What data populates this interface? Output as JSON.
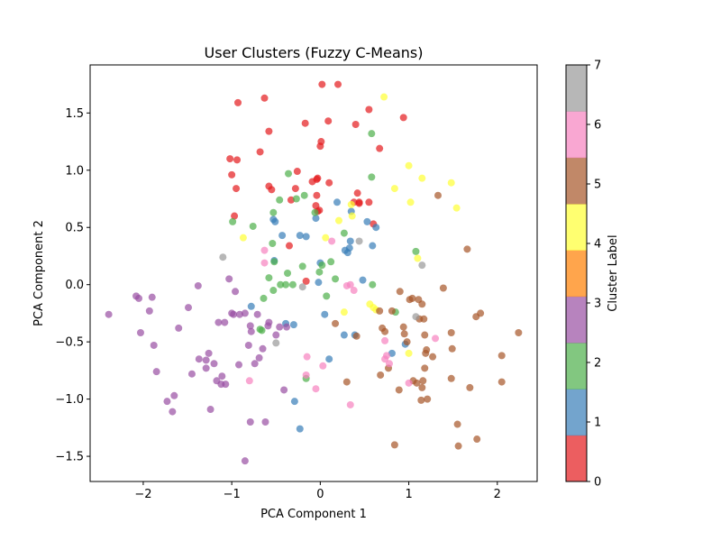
{
  "chart_data": {
    "type": "scatter",
    "title": "User Clusters (Fuzzy C-Means)",
    "xlabel": "PCA Component 1",
    "ylabel": "PCA Component 2",
    "xlim": [
      -2.6,
      2.45
    ],
    "ylim": [
      -1.72,
      1.92
    ],
    "xticks": [
      -2,
      -1,
      0,
      1,
      2
    ],
    "xtick_labels": [
      "−2",
      "−1",
      "0",
      "1",
      "2"
    ],
    "yticks": [
      -1.5,
      -1.0,
      -0.5,
      0.0,
      0.5,
      1.0,
      1.5
    ],
    "ytick_labels": [
      "−1.5",
      "−1.0",
      "−0.5",
      "0.0",
      "0.5",
      "1.0",
      "1.5"
    ],
    "grid": false,
    "marker_alpha": 0.7,
    "colorbar": {
      "label": "Cluster Label",
      "colormap": "Set1",
      "range": [
        0,
        7
      ],
      "ticks": [
        0,
        1,
        2,
        3,
        4,
        5,
        6,
        7
      ],
      "tick_labels": [
        "0",
        "1",
        "2",
        "3",
        "4",
        "5",
        "6",
        "7"
      ],
      "colors": [
        "#e41a1c",
        "#377eb8",
        "#4daf4a",
        "#984ea3",
        "#ff7f00",
        "#ffff33",
        "#a65628",
        "#f781bf",
        "#999999"
      ]
    },
    "series": [
      {
        "cluster": 0,
        "color": "#e41a1c",
        "x": [
          -0.93,
          -0.63,
          0.02,
          0.2,
          0.55,
          0.94,
          -0.58,
          -0.17,
          0.09,
          0.4,
          0.01,
          0.0,
          0.67,
          -1.02,
          -0.94,
          -0.68,
          -1.0,
          -0.55,
          -0.26,
          -0.28,
          -0.95,
          -0.33,
          -0.04,
          -0.05,
          0.1,
          0.42,
          0.44,
          0.38,
          0.44,
          -0.35,
          -0.58,
          -0.09,
          -0.04,
          -0.03,
          -0.03,
          -0.16,
          -0.97,
          0.55,
          -0.01,
          0.6
        ],
        "y": [
          1.59,
          1.63,
          1.75,
          1.75,
          1.53,
          1.46,
          1.34,
          1.41,
          1.43,
          1.4,
          1.25,
          1.21,
          1.19,
          1.1,
          1.09,
          1.16,
          0.96,
          0.83,
          0.99,
          0.84,
          0.84,
          0.74,
          0.78,
          0.69,
          0.89,
          0.8,
          0.71,
          0.72,
          0.72,
          0.34,
          0.86,
          0.9,
          0.92,
          0.93,
          0.64,
          0.03,
          0.6,
          0.72,
          0.65,
          0.53
        ]
      },
      {
        "cluster": 1,
        "color": "#377eb8",
        "x": [
          -0.53,
          -0.51,
          -0.43,
          -0.23,
          -0.16,
          -0.05,
          0.19,
          0.28,
          0.34,
          0.33,
          0.53,
          0.59,
          0.63,
          0.35,
          0.48,
          0.0,
          -0.78,
          -0.3,
          0.05,
          0.27,
          0.1,
          0.39,
          0.81,
          0.96,
          -0.39,
          -0.29,
          -0.23,
          -0.52,
          -0.02,
          0.31
        ],
        "y": [
          0.57,
          0.55,
          0.43,
          0.43,
          0.42,
          0.58,
          0.72,
          0.3,
          0.38,
          0.32,
          0.55,
          0.34,
          0.5,
          0.64,
          0.04,
          0.19,
          -0.19,
          -0.35,
          -0.26,
          -0.44,
          -0.65,
          -0.44,
          -0.6,
          -0.52,
          -0.34,
          -1.02,
          -1.26,
          0.21,
          0.02,
          0.28
        ]
      },
      {
        "cluster": 2,
        "color": "#4daf4a",
        "x": [
          -0.18,
          -0.36,
          -0.46,
          -0.27,
          -0.53,
          -0.99,
          -0.76,
          -0.54,
          -0.52,
          -0.58,
          -0.64,
          -0.53,
          -0.37,
          -0.2,
          -0.39,
          -0.31,
          -0.45,
          -0.66,
          -0.68,
          -0.01,
          0.12,
          0.02,
          0.07,
          0.17,
          0.27,
          0.58,
          0.58,
          0.59,
          0.85,
          -0.16,
          1.08,
          -0.06
        ],
        "y": [
          0.78,
          0.97,
          0.74,
          0.75,
          0.63,
          0.55,
          0.51,
          0.36,
          0.2,
          0.06,
          -0.12,
          -0.05,
          0.1,
          0.16,
          0.0,
          0.0,
          0.0,
          -0.4,
          -0.39,
          0.11,
          0.2,
          0.17,
          -0.1,
          0.05,
          0.45,
          0.94,
          1.32,
          0.0,
          -0.24,
          -0.82,
          0.29,
          0.63
        ]
      },
      {
        "cluster": 3,
        "color": "#984ea3",
        "x": [
          -2.39,
          -2.08,
          -1.93,
          -2.03,
          -1.88,
          -1.73,
          -1.65,
          -1.29,
          -1.2,
          -1.17,
          -1.07,
          -1.0,
          -0.98,
          -0.91,
          -0.92,
          -0.85,
          -0.81,
          -0.79,
          -0.69,
          -0.65,
          -0.59,
          -0.58,
          -0.5,
          -0.38,
          -1.45,
          -1.38,
          -1.85,
          -1.6,
          -1.26,
          -1.15,
          -1.08,
          -1.03,
          -0.96,
          -0.78,
          -0.62,
          -0.71,
          -0.41,
          -0.46,
          -1.9,
          -1.67,
          -1.49,
          -1.11,
          -0.74,
          -0.85,
          -1.29,
          -2.05,
          -1.12,
          -1.37,
          -0.79,
          -1.24
        ],
        "y": [
          -0.26,
          -0.1,
          -0.23,
          -0.42,
          -0.53,
          -1.02,
          -0.97,
          -0.73,
          -0.69,
          -0.84,
          -0.87,
          -0.25,
          -0.26,
          -0.26,
          -0.7,
          -0.25,
          -0.53,
          -0.36,
          -0.64,
          -0.56,
          -0.36,
          -0.33,
          -0.44,
          -0.37,
          -0.78,
          -0.01,
          -0.76,
          -0.38,
          -0.6,
          -0.33,
          -0.33,
          0.05,
          -0.06,
          -0.41,
          -1.2,
          -0.26,
          -0.92,
          -0.37,
          -0.11,
          -1.11,
          -0.2,
          -0.8,
          -0.69,
          -1.54,
          -0.66,
          -0.12,
          -0.87,
          -0.65,
          -1.2,
          -1.09
        ]
      },
      {
        "cluster": 5,
        "color": "#ffff33",
        "x": [
          0.72,
          1.0,
          1.15,
          1.48,
          1.54,
          0.84,
          1.02,
          0.35,
          0.36,
          0.21,
          -0.87,
          0.06,
          0.56,
          0.6,
          0.63,
          1.1,
          1.0,
          0.27
        ],
        "y": [
          1.64,
          1.04,
          0.93,
          0.89,
          0.67,
          0.84,
          0.72,
          0.7,
          0.6,
          0.56,
          0.41,
          0.41,
          -0.17,
          -0.2,
          -0.22,
          0.23,
          -0.6,
          -0.24
        ]
      },
      {
        "cluster": 6,
        "color": "#a65628",
        "x": [
          1.33,
          1.39,
          1.66,
          1.76,
          1.81,
          1.48,
          1.49,
          1.48,
          1.55,
          1.56,
          1.77,
          1.69,
          2.05,
          2.05,
          2.24,
          1.11,
          1.15,
          1.17,
          1.18,
          1.19,
          1.2,
          1.27,
          1.18,
          1.21,
          1.14,
          1.15,
          1.16,
          1.09,
          1.01,
          1.04,
          1.05,
          0.89,
          0.77,
          0.73,
          0.7,
          0.67,
          0.94,
          0.95,
          0.98,
          0.17,
          0.41,
          0.3,
          0.68,
          0.84,
          0.9,
          1.12,
          0.81
        ],
        "y": [
          0.78,
          -0.03,
          0.31,
          -0.28,
          -0.25,
          -0.42,
          -0.56,
          -0.82,
          -1.22,
          -1.41,
          -1.35,
          -0.9,
          -0.62,
          -0.85,
          -0.42,
          -0.13,
          -0.17,
          -0.3,
          -0.44,
          -0.6,
          -0.57,
          -0.63,
          -0.73,
          -1.0,
          -1.01,
          -0.9,
          -0.84,
          -0.86,
          -0.13,
          -0.12,
          -0.84,
          -0.92,
          -0.73,
          -0.41,
          -0.38,
          -0.23,
          -0.37,
          -0.43,
          -0.5,
          -0.34,
          -0.45,
          -0.85,
          -0.79,
          -1.4,
          -0.06,
          -0.3,
          -0.23
        ]
      },
      {
        "cluster": 7,
        "color": "#f781bf",
        "x": [
          0.13,
          0.38,
          0.3,
          0.34,
          -0.63,
          -0.63,
          -0.15,
          -0.16,
          -0.05,
          0.03,
          0.34,
          0.73,
          0.78,
          1.0,
          1.3,
          0.75,
          0.73,
          -0.8
        ],
        "y": [
          0.38,
          -0.05,
          -0.01,
          -1.05,
          0.3,
          0.19,
          -0.63,
          -0.79,
          -0.91,
          -0.71,
          0.0,
          -0.49,
          -0.69,
          -0.86,
          -0.47,
          -0.62,
          -0.65,
          -0.84
        ]
      },
      {
        "cluster": 8,
        "color": "#999999",
        "x": [
          -1.1,
          -0.2,
          -0.5,
          1.15,
          1.08,
          0.44
        ],
        "y": [
          0.24,
          -0.02,
          -0.51,
          0.17,
          -0.28,
          0.38
        ]
      }
    ]
  }
}
